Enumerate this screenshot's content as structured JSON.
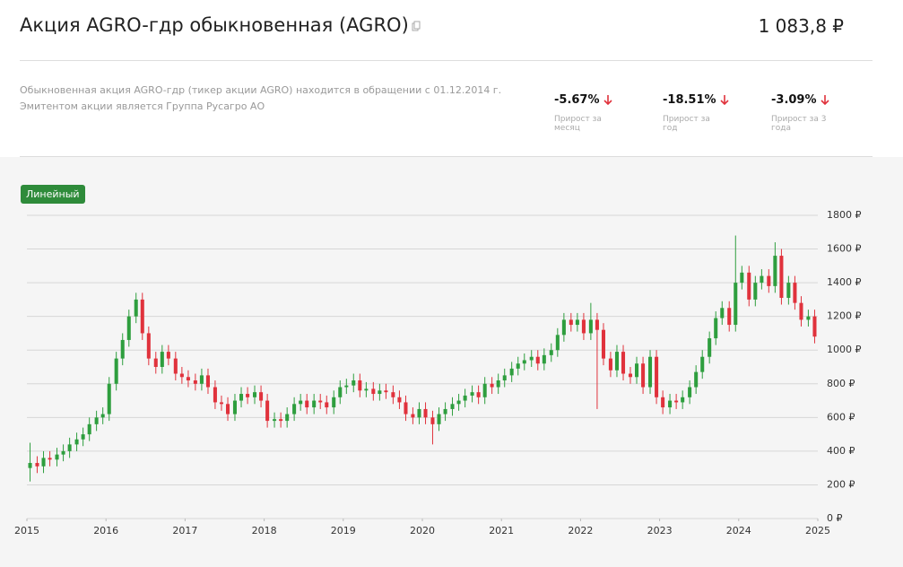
{
  "header": {
    "title": "Акция AGRO-гдр обыкновенная (AGRO)",
    "price": "1 083,8 ₽"
  },
  "description": [
    "Обыкновенная акция AGRO-гдр (тикер акции AGRO) находится в обращении с 01.12.2014 г.",
    "Эмитентом акции является Группа Русагро АО"
  ],
  "stats": [
    {
      "value": "-5.67%",
      "label": "Прирост за месяц"
    },
    {
      "value": "-18.51%",
      "label": "Прирост за год"
    },
    {
      "value": "-3.09%",
      "label": "Прирост за 3 года"
    }
  ],
  "button": "Линейный",
  "chart_data": {
    "type": "candlestick",
    "up_color": "#2e9e3e",
    "down_color": "#e0323c",
    "grid": true,
    "xlim": [
      2015,
      2025
    ],
    "xticks": [
      2015,
      2016,
      2017,
      2018,
      2019,
      2020,
      2021,
      2022,
      2023,
      2024,
      2025
    ],
    "ylim": [
      0,
      1800
    ],
    "yticks": [
      {
        "value": 0,
        "label": "0 ₽"
      },
      {
        "value": 200,
        "label": "200 ₽"
      },
      {
        "value": 400,
        "label": "400 ₽"
      },
      {
        "value": 600,
        "label": "600 ₽"
      },
      {
        "value": 800,
        "label": "800 ₽"
      },
      {
        "value": 1000,
        "label": "1000 ₽"
      },
      {
        "value": 1200,
        "label": "1200 ₽"
      },
      {
        "value": 1400,
        "label": "1400 ₽"
      },
      {
        "value": 1600,
        "label": "1600 ₽"
      },
      {
        "value": 1800,
        "label": "1800 ₽"
      }
    ],
    "x": [
      2015.04,
      2015.13,
      2015.21,
      2015.29,
      2015.38,
      2015.46,
      2015.54,
      2015.63,
      2015.71,
      2015.79,
      2015.88,
      2015.96,
      2016.04,
      2016.13,
      2016.21,
      2016.29,
      2016.38,
      2016.46,
      2016.54,
      2016.63,
      2016.71,
      2016.79,
      2016.88,
      2016.96,
      2017.04,
      2017.13,
      2017.21,
      2017.29,
      2017.38,
      2017.46,
      2017.54,
      2017.63,
      2017.71,
      2017.79,
      2017.88,
      2017.96,
      2018.04,
      2018.13,
      2018.21,
      2018.29,
      2018.38,
      2018.46,
      2018.54,
      2018.63,
      2018.71,
      2018.79,
      2018.88,
      2018.96,
      2019.04,
      2019.13,
      2019.21,
      2019.29,
      2019.38,
      2019.46,
      2019.54,
      2019.63,
      2019.71,
      2019.79,
      2019.88,
      2019.96,
      2020.04,
      2020.13,
      2020.21,
      2020.29,
      2020.38,
      2020.46,
      2020.54,
      2020.63,
      2020.71,
      2020.79,
      2020.88,
      2020.96,
      2021.04,
      2021.13,
      2021.21,
      2021.29,
      2021.38,
      2021.46,
      2021.54,
      2021.63,
      2021.71,
      2021.79,
      2021.88,
      2021.96,
      2022.04,
      2022.13,
      2022.21,
      2022.29,
      2022.38,
      2022.46,
      2022.54,
      2022.63,
      2022.71,
      2022.79,
      2022.88,
      2022.96,
      2023.04,
      2023.13,
      2023.21,
      2023.29,
      2023.38,
      2023.46,
      2023.54,
      2023.63,
      2023.71,
      2023.79,
      2023.88,
      2023.96,
      2024.04,
      2024.13,
      2024.21,
      2024.29,
      2024.38,
      2024.46,
      2024.54,
      2024.63,
      2024.71,
      2024.79,
      2024.88,
      2024.96
    ],
    "open": [
      300,
      330,
      310,
      360,
      350,
      380,
      400,
      440,
      470,
      500,
      560,
      600,
      620,
      800,
      950,
      1060,
      1200,
      1300,
      1100,
      950,
      900,
      990,
      950,
      860,
      840,
      820,
      800,
      850,
      780,
      690,
      680,
      620,
      700,
      740,
      720,
      750,
      700,
      580,
      590,
      580,
      620,
      680,
      700,
      660,
      700,
      690,
      660,
      720,
      780,
      790,
      820,
      760,
      770,
      740,
      760,
      750,
      720,
      690,
      620,
      600,
      650,
      600,
      560,
      620,
      650,
      680,
      700,
      730,
      750,
      720,
      800,
      780,
      820,
      850,
      890,
      920,
      940,
      960,
      920,
      970,
      1000,
      1090,
      1180,
      1150,
      1180,
      1100,
      1180,
      1120,
      950,
      880,
      990,
      860,
      840,
      920,
      780,
      960,
      720,
      660,
      700,
      690,
      720,
      780,
      870,
      960,
      1070,
      1190,
      1250,
      1150,
      1400,
      1460,
      1300,
      1400,
      1440,
      1380,
      1560,
      1310,
      1400,
      1280,
      1180,
      1200
    ],
    "high": [
      450,
      370,
      400,
      400,
      420,
      440,
      480,
      510,
      540,
      600,
      640,
      660,
      840,
      990,
      1100,
      1240,
      1340,
      1340,
      1140,
      990,
      1030,
      1030,
      990,
      900,
      880,
      860,
      890,
      890,
      820,
      730,
      720,
      740,
      780,
      780,
      790,
      790,
      740,
      630,
      630,
      660,
      720,
      740,
      740,
      740,
      740,
      730,
      760,
      820,
      830,
      860,
      860,
      810,
      810,
      800,
      800,
      790,
      760,
      730,
      660,
      690,
      690,
      640,
      660,
      690,
      720,
      740,
      770,
      790,
      790,
      840,
      840,
      860,
      890,
      930,
      960,
      980,
      1000,
      1000,
      1010,
      1040,
      1130,
      1220,
      1220,
      1220,
      1220,
      1280,
      1220,
      1160,
      990,
      1030,
      1030,
      900,
      960,
      960,
      1000,
      1000,
      760,
      740,
      740,
      760,
      820,
      910,
      1000,
      1110,
      1230,
      1290,
      1290,
      1680,
      1500,
      1500,
      1440,
      1480,
      1480,
      1640,
      1600,
      1440,
      1440,
      1320,
      1240,
      1240
    ],
    "low": [
      220,
      270,
      270,
      310,
      310,
      340,
      360,
      400,
      430,
      460,
      520,
      560,
      580,
      760,
      910,
      1020,
      1160,
      1060,
      910,
      860,
      860,
      910,
      820,
      800,
      780,
      760,
      760,
      740,
      650,
      640,
      580,
      580,
      660,
      680,
      680,
      660,
      540,
      540,
      540,
      540,
      580,
      640,
      620,
      620,
      650,
      620,
      620,
      680,
      740,
      750,
      720,
      720,
      700,
      700,
      710,
      680,
      650,
      580,
      560,
      560,
      560,
      440,
      520,
      580,
      610,
      640,
      660,
      690,
      680,
      680,
      740,
      740,
      780,
      810,
      850,
      880,
      900,
      880,
      880,
      930,
      960,
      1050,
      1110,
      1110,
      1060,
      1060,
      650,
      910,
      840,
      840,
      820,
      800,
      800,
      740,
      740,
      680,
      620,
      620,
      650,
      650,
      680,
      740,
      830,
      920,
      1030,
      1150,
      1110,
      1110,
      1360,
      1260,
      1260,
      1360,
      1340,
      1340,
      1270,
      1270,
      1240,
      1140,
      1140,
      1040
    ],
    "close": [
      330,
      310,
      360,
      350,
      380,
      400,
      440,
      470,
      500,
      560,
      600,
      620,
      800,
      950,
      1060,
      1200,
      1300,
      1100,
      950,
      900,
      990,
      950,
      860,
      840,
      820,
      800,
      850,
      780,
      690,
      680,
      620,
      700,
      740,
      720,
      750,
      700,
      580,
      590,
      580,
      620,
      680,
      700,
      660,
      700,
      690,
      660,
      720,
      780,
      790,
      820,
      760,
      770,
      740,
      760,
      750,
      720,
      690,
      620,
      600,
      650,
      600,
      560,
      620,
      650,
      680,
      700,
      730,
      750,
      720,
      800,
      780,
      820,
      850,
      890,
      920,
      940,
      960,
      920,
      970,
      1000,
      1090,
      1180,
      1150,
      1180,
      1100,
      1180,
      1120,
      950,
      880,
      990,
      860,
      840,
      920,
      780,
      960,
      720,
      660,
      700,
      690,
      720,
      780,
      870,
      960,
      1070,
      1190,
      1250,
      1150,
      1400,
      1460,
      1300,
      1400,
      1440,
      1380,
      1560,
      1310,
      1400,
      1280,
      1180,
      1200,
      1080
    ]
  }
}
